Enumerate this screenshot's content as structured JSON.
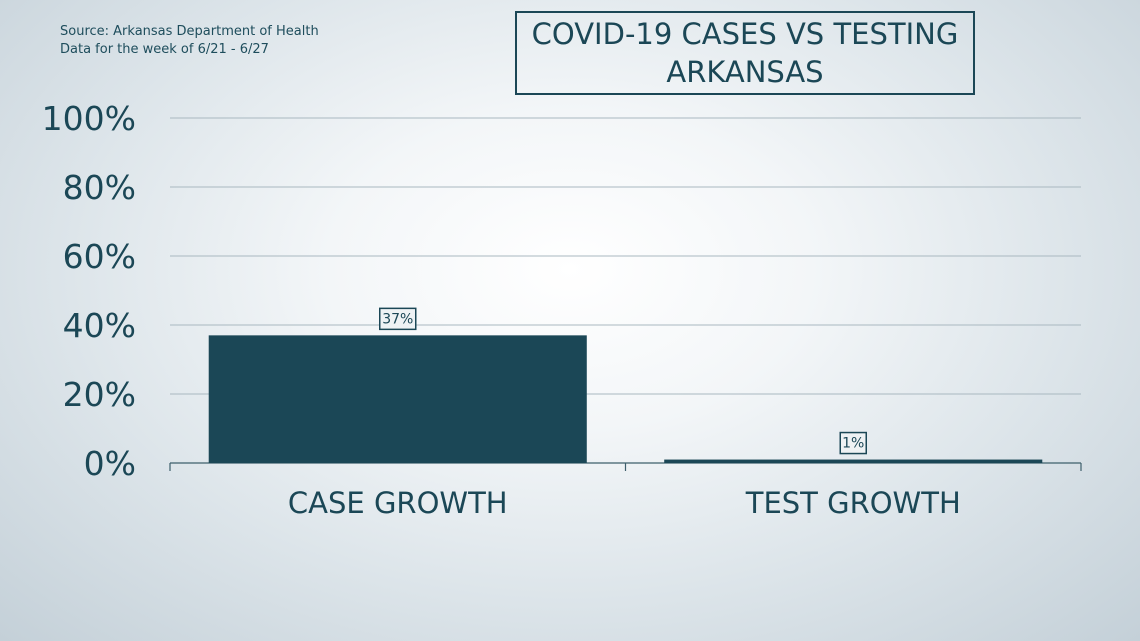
{
  "source": {
    "line1": "Source: Arkansas Department of Health",
    "line2": "Data for the week of 6/21 - 6/27"
  },
  "chart_data": {
    "type": "bar",
    "title_line1": "COVID-19 CASES VS TESTING",
    "title_line2": "ARKANSAS",
    "categories": [
      "CASE GROWTH",
      "TEST GROWTH"
    ],
    "values": [
      37,
      1
    ],
    "value_labels": [
      "37%",
      "1%"
    ],
    "ylim": [
      0,
      100
    ],
    "yticks": [
      0,
      20,
      40,
      60,
      80,
      100
    ],
    "ytick_labels": [
      "0%",
      "20%",
      "40%",
      "60%",
      "80%",
      "100%"
    ],
    "xlabel": "",
    "ylabel": "",
    "grid": true,
    "legend": "none",
    "colors": {
      "bar": "#1b4756",
      "grid": "#a9b8c0",
      "text": "#1b4756"
    }
  }
}
